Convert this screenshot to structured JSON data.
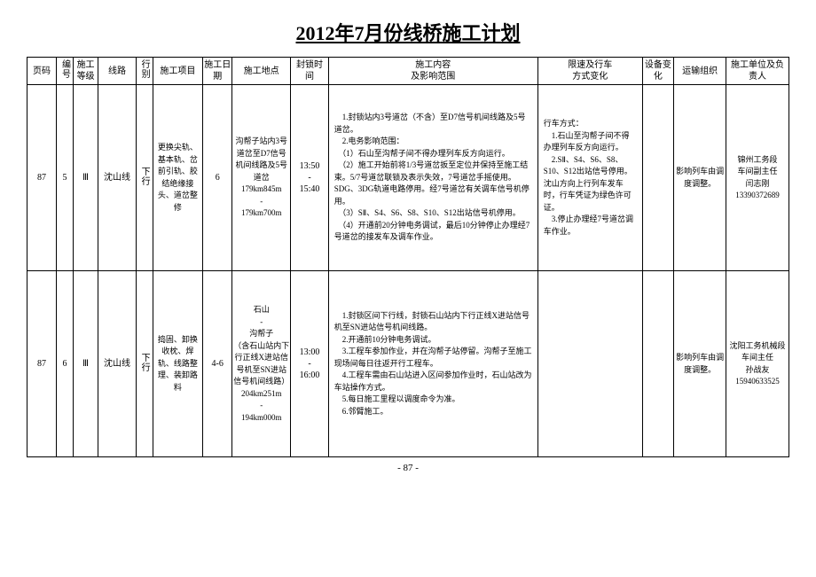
{
  "title": "2012年7月份线桥施工计划",
  "headers": {
    "page": "页码",
    "seq": "编号",
    "grade": "施工等级",
    "line": "线路",
    "dir": "行别",
    "item": "施工项目",
    "date": "施工日期",
    "loc": "施工地点",
    "time": "封锁时间",
    "content": "施工内容\n及影响范围",
    "speed": "限速及行车\n方式变化",
    "equip": "设备变化",
    "trans": "运输组织",
    "unit": "施工单位及负责人"
  },
  "rows": [
    {
      "page": "87",
      "seq": "5",
      "grade": "Ⅲ",
      "line": "沈山线",
      "dir": "下行",
      "item": "更换尖轨、基本轨、岔前引轨、胶结绝缘接头、道岔整修",
      "date": "6",
      "loc": "沟帮子站内3号道岔至D7信号机间线路及5号道岔\n179km845m\n-\n179km700m",
      "time": "13:50\n-\n15:40",
      "content": "　1.封锁站内3号道岔（不含）至D7信号机间线路及5号道岔。\n　2.电务影响范围：\n　（1）石山至沟帮子间不得办理列车反方向运行。\n　（2）施工开始前将1/3号道岔扳至定位并保持至施工结束。5/7号道岔联锁及表示失效，7号道岔手摇使用。SDG、3DG轨道电路停用。经7号道岔有关调车信号机停用。\n　（3）SⅡ、S4、S6、S8、S10、S12出站信号机停用。\n　（4）开通前20分钟电务调试，最后10分钟停止办理经7号道岔的接发车及调车作业。",
      "speed": "行车方式：\n　1.石山至沟帮子间不得办理列车反方向运行。\n　2.SⅡ、S4、S6、S8、S10、S12出站信号停用。沈山方向上行列车发车时，行车凭证为绿色许可证。\n　3.停止办理经7号道岔调车作业。",
      "equip": "",
      "trans": "影响列车由调度调整。",
      "unit": "锦州工务段\n车间副主任\n闫志刚\n13390372689"
    },
    {
      "page": "87",
      "seq": "6",
      "grade": "Ⅲ",
      "line": "沈山线",
      "dir": "下行",
      "item": "捣固、卸换收枕、焊轨、线路整理、装卸路料",
      "date": "4-6",
      "loc": "石山\n-\n沟帮子\n（含石山站内下行正线X进站信号机至SN进站信号机间线路）\n204km251m\n-\n194km000m",
      "time": "13:00\n-\n16:00",
      "content": "　1.封锁区间下行线，封锁石山站内下行正线X进站信号机至SN进站信号机间线路。\n　2.开通前10分钟电务调试。\n　3.工程车参加作业，并在沟帮子站停留。沟帮子至施工现场间每日往返开行工程车。\n　4.工程车需由石山站进入区间参加作业时，石山站改为车站操作方式。\n　5.每日施工里程以调度命令为准。\n　6.邻臂施工。",
      "speed": "",
      "equip": "",
      "trans": "影响列车由调度调整。",
      "unit": "沈阳工务机械段\n车间主任\n孙战友\n15940633525"
    }
  ],
  "footer": "- 87 -"
}
